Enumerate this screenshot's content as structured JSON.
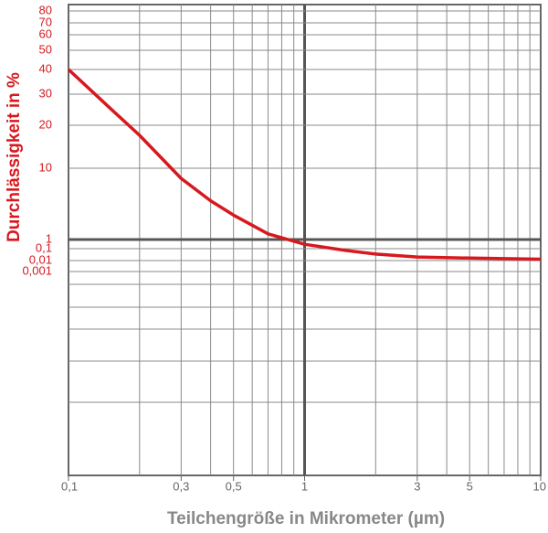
{
  "chart_data": {
    "type": "line",
    "x_label": "Teilchengröße in Mikrometer (µm)",
    "y_label": "Durchlässigkeit in %",
    "xlog": true,
    "xlim": [
      0.1,
      10
    ],
    "xticks": [
      {
        "value": 0.1,
        "label": "0,1"
      },
      {
        "value": 0.3,
        "label": "0,3"
      },
      {
        "value": 0.5,
        "label": "0,5"
      },
      1,
      3,
      5,
      10
    ],
    "xgrid": [
      0.2,
      0.3,
      0.4,
      0.5,
      0.6,
      0.7,
      0.8,
      0.9,
      1,
      2,
      3,
      4,
      5,
      6,
      7,
      8,
      9
    ],
    "yticks": [
      80,
      70,
      60,
      50,
      40,
      30,
      20,
      10,
      1,
      {
        "value": 0.1,
        "label": "0,1"
      },
      {
        "value": 0.01,
        "label": "0,01"
      },
      {
        "value": 0.001,
        "label": "0,001"
      }
    ],
    "x": [
      0.1,
      0.15,
      0.2,
      0.3,
      0.4,
      0.5,
      0.7,
      1,
      1.5,
      2,
      3,
      5,
      10
    ],
    "series": [
      {
        "color": "#d7191f",
        "values": [
          40,
          25,
          17,
          7.2,
          3.5,
          2.2,
          1.2,
          0.3,
          0.07,
          0.035,
          0.02,
          0.016,
          0.013
        ]
      }
    ],
    "grid": true
  }
}
